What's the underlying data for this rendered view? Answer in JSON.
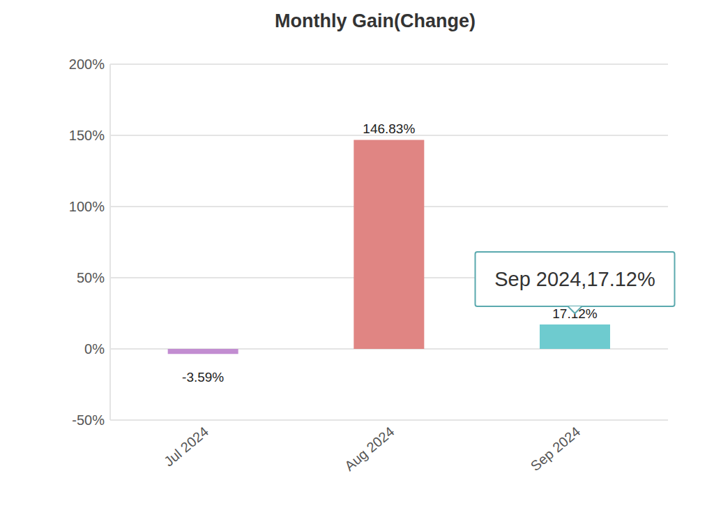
{
  "chart_data": {
    "type": "bar",
    "title": "Monthly Gain(Change)",
    "categories": [
      "Jul 2024",
      "Aug 2024",
      "Sep 2024"
    ],
    "values": [
      -3.59,
      146.83,
      17.12
    ],
    "value_labels": [
      "-3.59%",
      "146.83%",
      "17.12%"
    ],
    "colors": [
      "#c28dd1",
      "#e08583",
      "#6ecbcf"
    ],
    "ylim": [
      -50,
      200
    ],
    "yticks": [
      {
        "value": -50,
        "label": "-50%"
      },
      {
        "value": 0,
        "label": "0%"
      },
      {
        "value": 50,
        "label": "50%"
      },
      {
        "value": 100,
        "label": "100%"
      },
      {
        "value": 150,
        "label": "150%"
      },
      {
        "value": 200,
        "label": "200%"
      }
    ],
    "grid": true,
    "data_labels": true,
    "annotations": [
      {
        "text": "Sep 2024,17.12%",
        "category": "Sep 2024"
      }
    ]
  }
}
